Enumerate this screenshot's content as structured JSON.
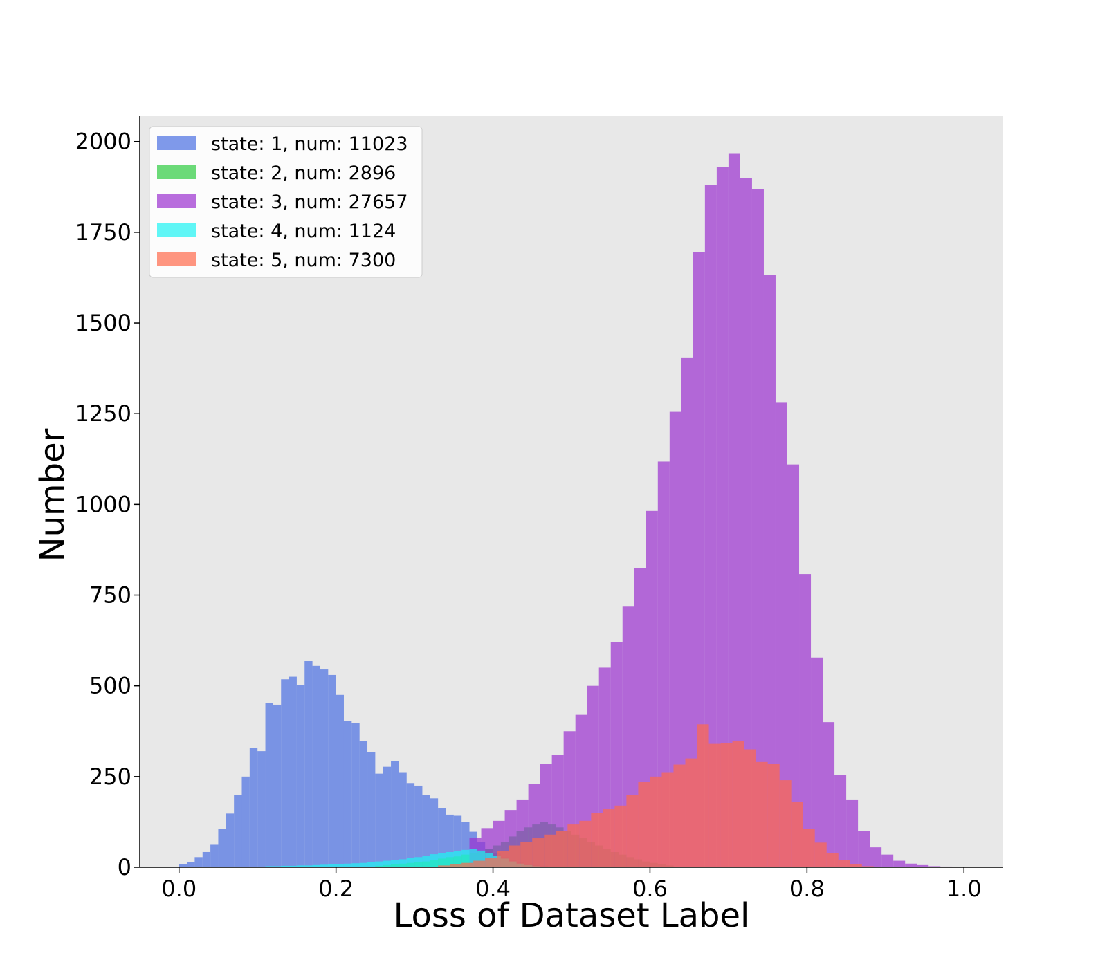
{
  "chart_data": {
    "type": "histogram",
    "xlabel": "Loss of Dataset Label",
    "ylabel": "Number",
    "xlim": [
      -0.05,
      1.05
    ],
    "ylim": [
      0,
      2070
    ],
    "x_ticks": [
      0.0,
      0.2,
      0.4,
      0.6,
      0.8,
      1.0
    ],
    "x_tick_labels": [
      "0.0",
      "0.2",
      "0.4",
      "0.6",
      "0.8",
      "1.0"
    ],
    "y_ticks": [
      0,
      250,
      500,
      750,
      1000,
      1250,
      1500,
      1750,
      2000
    ],
    "y_tick_labels": [
      "0",
      "250",
      "500",
      "750",
      "1000",
      "1250",
      "1500",
      "1750",
      "2000"
    ],
    "plot_background": "#e8e8e8",
    "grid": false,
    "legend_position": "upper-left",
    "series": [
      {
        "name": "state: 1, num: 11023",
        "color": "#4a6fe3",
        "opacity": 0.7,
        "bins": [
          [
            0.0,
            0.01,
            8
          ],
          [
            0.01,
            0.02,
            15
          ],
          [
            0.02,
            0.03,
            28
          ],
          [
            0.03,
            0.04,
            42
          ],
          [
            0.04,
            0.05,
            62
          ],
          [
            0.05,
            0.06,
            105
          ],
          [
            0.06,
            0.07,
            148
          ],
          [
            0.07,
            0.08,
            200
          ],
          [
            0.08,
            0.09,
            250
          ],
          [
            0.09,
            0.1,
            328
          ],
          [
            0.1,
            0.11,
            320
          ],
          [
            0.11,
            0.12,
            452
          ],
          [
            0.12,
            0.13,
            448
          ],
          [
            0.13,
            0.14,
            518
          ],
          [
            0.14,
            0.15,
            525
          ],
          [
            0.15,
            0.16,
            502
          ],
          [
            0.16,
            0.17,
            568
          ],
          [
            0.17,
            0.18,
            555
          ],
          [
            0.18,
            0.19,
            545
          ],
          [
            0.19,
            0.2,
            530
          ],
          [
            0.2,
            0.21,
            475
          ],
          [
            0.21,
            0.22,
            403
          ],
          [
            0.22,
            0.23,
            398
          ],
          [
            0.23,
            0.24,
            348
          ],
          [
            0.24,
            0.25,
            318
          ],
          [
            0.25,
            0.26,
            258
          ],
          [
            0.26,
            0.27,
            277
          ],
          [
            0.27,
            0.28,
            292
          ],
          [
            0.28,
            0.29,
            262
          ],
          [
            0.29,
            0.3,
            232
          ],
          [
            0.3,
            0.31,
            225
          ],
          [
            0.31,
            0.32,
            200
          ],
          [
            0.32,
            0.33,
            190
          ],
          [
            0.33,
            0.34,
            162
          ],
          [
            0.34,
            0.35,
            145
          ],
          [
            0.35,
            0.36,
            142
          ],
          [
            0.36,
            0.37,
            125
          ],
          [
            0.37,
            0.38,
            98
          ],
          [
            0.38,
            0.39,
            70
          ],
          [
            0.39,
            0.4,
            50
          ],
          [
            0.4,
            0.41,
            38
          ],
          [
            0.41,
            0.42,
            28
          ],
          [
            0.42,
            0.43,
            20
          ],
          [
            0.43,
            0.44,
            14
          ],
          [
            0.44,
            0.45,
            9
          ],
          [
            0.45,
            0.46,
            6
          ],
          [
            0.46,
            0.47,
            4
          ],
          [
            0.47,
            0.48,
            2
          ]
        ]
      },
      {
        "name": "state: 2, num: 2896",
        "color": "#2ecc40",
        "opacity": 0.7,
        "bins": [
          [
            0.25,
            0.26,
            4
          ],
          [
            0.26,
            0.27,
            6
          ],
          [
            0.27,
            0.28,
            8
          ],
          [
            0.28,
            0.29,
            10
          ],
          [
            0.29,
            0.3,
            12
          ],
          [
            0.3,
            0.31,
            14
          ],
          [
            0.31,
            0.32,
            16
          ],
          [
            0.32,
            0.33,
            20
          ],
          [
            0.33,
            0.34,
            24
          ],
          [
            0.34,
            0.35,
            28
          ],
          [
            0.35,
            0.36,
            30
          ],
          [
            0.36,
            0.37,
            35
          ],
          [
            0.37,
            0.38,
            40
          ],
          [
            0.38,
            0.39,
            45
          ],
          [
            0.39,
            0.4,
            50
          ],
          [
            0.4,
            0.41,
            60
          ],
          [
            0.41,
            0.42,
            70
          ],
          [
            0.42,
            0.43,
            85
          ],
          [
            0.43,
            0.44,
            100
          ],
          [
            0.44,
            0.45,
            110
          ],
          [
            0.45,
            0.46,
            118
          ],
          [
            0.46,
            0.47,
            125
          ],
          [
            0.47,
            0.48,
            118
          ],
          [
            0.48,
            0.49,
            110
          ],
          [
            0.49,
            0.5,
            100
          ],
          [
            0.5,
            0.51,
            90
          ],
          [
            0.51,
            0.52,
            80
          ],
          [
            0.52,
            0.53,
            70
          ],
          [
            0.53,
            0.54,
            60
          ],
          [
            0.54,
            0.55,
            50
          ],
          [
            0.55,
            0.56,
            42
          ],
          [
            0.56,
            0.57,
            35
          ],
          [
            0.57,
            0.58,
            28
          ],
          [
            0.58,
            0.59,
            22
          ],
          [
            0.59,
            0.6,
            16
          ],
          [
            0.6,
            0.61,
            12
          ],
          [
            0.61,
            0.62,
            8
          ],
          [
            0.62,
            0.63,
            5
          ]
        ]
      },
      {
        "name": "state: 3, num: 27657",
        "color": "#9b30d0",
        "opacity": 0.7,
        "bins": [
          [
            0.37,
            0.385,
            82
          ],
          [
            0.385,
            0.4,
            108
          ],
          [
            0.4,
            0.415,
            128
          ],
          [
            0.415,
            0.43,
            158
          ],
          [
            0.43,
            0.445,
            185
          ],
          [
            0.445,
            0.46,
            230
          ],
          [
            0.46,
            0.475,
            285
          ],
          [
            0.475,
            0.49,
            310
          ],
          [
            0.49,
            0.505,
            375
          ],
          [
            0.505,
            0.52,
            420
          ],
          [
            0.52,
            0.535,
            500
          ],
          [
            0.535,
            0.55,
            550
          ],
          [
            0.55,
            0.565,
            620
          ],
          [
            0.565,
            0.58,
            720
          ],
          [
            0.58,
            0.595,
            825
          ],
          [
            0.595,
            0.61,
            982
          ],
          [
            0.61,
            0.625,
            1118
          ],
          [
            0.625,
            0.64,
            1255
          ],
          [
            0.64,
            0.655,
            1405
          ],
          [
            0.655,
            0.67,
            1695
          ],
          [
            0.67,
            0.685,
            1880
          ],
          [
            0.685,
            0.7,
            1930
          ],
          [
            0.7,
            0.715,
            1968
          ],
          [
            0.715,
            0.73,
            1900
          ],
          [
            0.73,
            0.745,
            1868
          ],
          [
            0.745,
            0.76,
            1632
          ],
          [
            0.76,
            0.775,
            1282
          ],
          [
            0.775,
            0.79,
            1110
          ],
          [
            0.79,
            0.805,
            808
          ],
          [
            0.805,
            0.82,
            578
          ],
          [
            0.82,
            0.835,
            400
          ],
          [
            0.835,
            0.85,
            255
          ],
          [
            0.85,
            0.865,
            185
          ],
          [
            0.865,
            0.88,
            100
          ],
          [
            0.88,
            0.895,
            55
          ],
          [
            0.895,
            0.91,
            35
          ],
          [
            0.91,
            0.925,
            18
          ],
          [
            0.925,
            0.94,
            10
          ],
          [
            0.94,
            0.955,
            6
          ],
          [
            0.955,
            0.97,
            3
          ],
          [
            0.97,
            0.985,
            2
          ],
          [
            0.985,
            1.0,
            1
          ]
        ]
      },
      {
        "name": "state: 4, num: 1124",
        "color": "#1ef4f4",
        "opacity": 0.7,
        "bins": [
          [
            0.1,
            0.11,
            2
          ],
          [
            0.11,
            0.12,
            3
          ],
          [
            0.12,
            0.13,
            3
          ],
          [
            0.13,
            0.14,
            4
          ],
          [
            0.14,
            0.15,
            4
          ],
          [
            0.15,
            0.16,
            5
          ],
          [
            0.16,
            0.17,
            5
          ],
          [
            0.17,
            0.18,
            6
          ],
          [
            0.18,
            0.19,
            7
          ],
          [
            0.19,
            0.2,
            8
          ],
          [
            0.2,
            0.21,
            9
          ],
          [
            0.21,
            0.22,
            10
          ],
          [
            0.22,
            0.23,
            11
          ],
          [
            0.23,
            0.24,
            12
          ],
          [
            0.24,
            0.25,
            14
          ],
          [
            0.25,
            0.26,
            16
          ],
          [
            0.26,
            0.27,
            18
          ],
          [
            0.27,
            0.28,
            20
          ],
          [
            0.28,
            0.29,
            22
          ],
          [
            0.29,
            0.3,
            25
          ],
          [
            0.3,
            0.31,
            28
          ],
          [
            0.31,
            0.32,
            32
          ],
          [
            0.32,
            0.33,
            36
          ],
          [
            0.33,
            0.34,
            40
          ],
          [
            0.34,
            0.35,
            42
          ],
          [
            0.35,
            0.36,
            45
          ],
          [
            0.36,
            0.37,
            48
          ],
          [
            0.37,
            0.38,
            50
          ],
          [
            0.38,
            0.39,
            46
          ],
          [
            0.39,
            0.4,
            40
          ],
          [
            0.4,
            0.41,
            32
          ],
          [
            0.41,
            0.42,
            24
          ],
          [
            0.42,
            0.43,
            16
          ],
          [
            0.43,
            0.44,
            10
          ],
          [
            0.44,
            0.45,
            6
          ],
          [
            0.45,
            0.46,
            3
          ]
        ]
      },
      {
        "name": "state: 5, num: 7300",
        "color": "#ff6a4c",
        "opacity": 0.7,
        "bins": [
          [
            0.33,
            0.345,
            5
          ],
          [
            0.345,
            0.36,
            8
          ],
          [
            0.36,
            0.375,
            12
          ],
          [
            0.375,
            0.39,
            18
          ],
          [
            0.39,
            0.405,
            25
          ],
          [
            0.405,
            0.42,
            45
          ],
          [
            0.42,
            0.435,
            60
          ],
          [
            0.435,
            0.45,
            70
          ],
          [
            0.45,
            0.465,
            80
          ],
          [
            0.465,
            0.48,
            90
          ],
          [
            0.48,
            0.495,
            100
          ],
          [
            0.495,
            0.51,
            118
          ],
          [
            0.51,
            0.525,
            128
          ],
          [
            0.525,
            0.54,
            150
          ],
          [
            0.54,
            0.555,
            160
          ],
          [
            0.555,
            0.57,
            170
          ],
          [
            0.57,
            0.585,
            200
          ],
          [
            0.585,
            0.6,
            236
          ],
          [
            0.6,
            0.615,
            250
          ],
          [
            0.615,
            0.63,
            262
          ],
          [
            0.63,
            0.645,
            283
          ],
          [
            0.645,
            0.66,
            300
          ],
          [
            0.66,
            0.675,
            394
          ],
          [
            0.675,
            0.69,
            340
          ],
          [
            0.69,
            0.705,
            342
          ],
          [
            0.705,
            0.72,
            348
          ],
          [
            0.72,
            0.735,
            325
          ],
          [
            0.735,
            0.75,
            290
          ],
          [
            0.75,
            0.765,
            285
          ],
          [
            0.765,
            0.78,
            240
          ],
          [
            0.78,
            0.795,
            180
          ],
          [
            0.795,
            0.81,
            105
          ],
          [
            0.81,
            0.825,
            68
          ],
          [
            0.825,
            0.84,
            40
          ],
          [
            0.84,
            0.855,
            20
          ],
          [
            0.855,
            0.87,
            8
          ],
          [
            0.87,
            0.885,
            3
          ]
        ]
      }
    ]
  }
}
